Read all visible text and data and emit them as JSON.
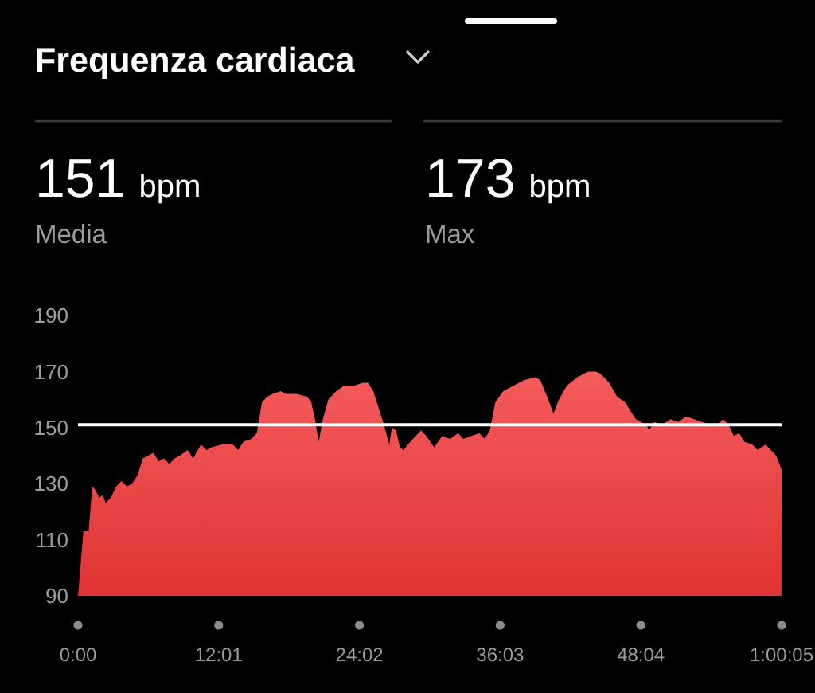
{
  "chart_data": {
    "type": "area",
    "title": "Frequenza cardiaca",
    "annotations": [
      "151 bpm",
      "Media",
      "173 bpm",
      "Max"
    ],
    "x": [
      0,
      0.46,
      0.91,
      1.22,
      1.45,
      1.82,
      2.13,
      2.36,
      2.81,
      3.26,
      3.72,
      4.17,
      4.62,
      5.08,
      5.53,
      5.98,
      6.44,
      6.89,
      7.33,
      7.8,
      8.24,
      8.69,
      9.37,
      9.83,
      10.51,
      10.96,
      11.41,
      12.32,
      13.23,
      13.68,
      14.12,
      14.8,
      15.27,
      15.71,
      16.16,
      16.62,
      17.3,
      17.75,
      18.66,
      19.56,
      19.92,
      20.24,
      20.56,
      20.91,
      21.38,
      22.06,
      22.73,
      23.63,
      24.31,
      24.77,
      25.22,
      25.67,
      26.13,
      26.58,
      26.81,
      27.16,
      27.49,
      27.8,
      28.17,
      28.85,
      29.29,
      29.74,
      30.42,
      31.1,
      31.78,
      32.46,
      32.92,
      33.6,
      34.28,
      34.73,
      35.17,
      35.64,
      36.32,
      37.21,
      38.12,
      39.03,
      39.48,
      40.16,
      40.61,
      41.07,
      41.75,
      42.64,
      43.55,
      44.23,
      44.68,
      45.36,
      46.04,
      46.72,
      47.18,
      47.63,
      48.08,
      48.54,
      48.76,
      49.22,
      49.9,
      50.58,
      51.26,
      51.93,
      52.61,
      53.29,
      53.97,
      54.65,
      55.1,
      55.55,
      56.01,
      56.46,
      56.9,
      57.58,
      58.04,
      58.72,
      59.17,
      59.62,
      59.99,
      60.08
    ],
    "values": [
      90,
      113,
      113,
      129,
      128,
      125,
      126,
      123,
      125,
      129,
      131,
      129,
      130,
      133,
      139,
      140,
      141,
      138,
      139,
      137,
      139,
      140,
      142,
      139,
      144,
      142,
      143,
      144,
      144,
      142,
      145,
      146,
      148,
      159,
      161,
      162,
      163,
      162,
      162,
      161,
      159,
      153,
      145,
      153,
      160,
      163,
      165,
      165,
      166,
      166,
      163,
      157,
      151,
      144,
      150,
      149,
      143,
      142,
      144,
      147,
      149,
      147,
      143,
      147,
      146,
      148,
      146,
      147,
      148,
      146,
      149,
      159,
      163,
      165,
      167,
      168,
      167,
      160,
      155,
      160,
      165,
      168,
      170,
      170,
      169,
      166,
      161,
      159,
      156,
      153,
      152,
      151,
      149,
      152,
      151,
      153,
      152,
      154,
      153,
      152,
      151,
      151,
      153,
      151,
      147,
      148,
      145,
      144,
      142,
      144,
      142,
      140,
      136,
      135
    ],
    "color": "#f55c5c",
    "xlim": [
      0,
      60.0833
    ],
    "xticks": [
      {
        "value": 0,
        "label": "0:00"
      },
      {
        "value": 12.0167,
        "label": "12:01"
      },
      {
        "value": 24.0333,
        "label": "24:02"
      },
      {
        "value": 36.05,
        "label": "36:03"
      },
      {
        "value": 48.0667,
        "label": "48:04"
      },
      {
        "value": 60.0833,
        "label": "1:00:05"
      }
    ],
    "ylim": [
      90,
      190
    ],
    "yticks": [
      90,
      110,
      130,
      150,
      170,
      190
    ],
    "ref_lines": [
      {
        "axis": "y",
        "value": 151,
        "color": "#ffffff"
      }
    ]
  }
}
